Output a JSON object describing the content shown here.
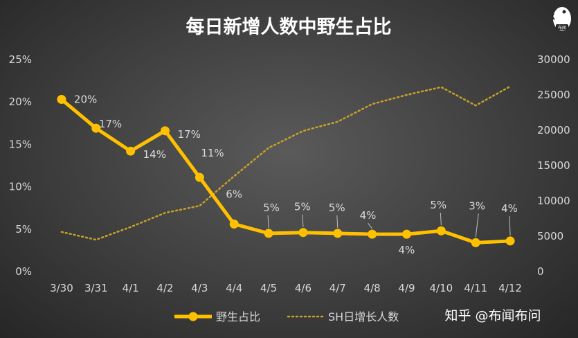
{
  "chart_data": {
    "type": "line",
    "title": "每日新增人数中野生占比",
    "categories": [
      "3/30",
      "3/31",
      "4/1",
      "4/2",
      "4/3",
      "4/4",
      "4/5",
      "4/6",
      "4/7",
      "4/8",
      "4/9",
      "4/10",
      "4/11",
      "4/12"
    ],
    "series": [
      {
        "name": "野生占比",
        "axis": "left",
        "values": [
          0.203,
          0.169,
          0.142,
          0.166,
          0.111,
          0.056,
          0.045,
          0.046,
          0.045,
          0.044,
          0.044,
          0.048,
          0.034,
          0.036
        ],
        "labels": [
          "20%",
          "17%",
          "14%",
          "17%",
          "11%",
          "6%",
          "5%",
          "5%",
          "5%",
          "4%",
          "4%",
          "5%",
          "3%",
          "4%"
        ],
        "color": "#ffc000",
        "style": "solid-markers"
      },
      {
        "name": "SH日增长人数",
        "axis": "right",
        "values": [
          5600,
          4500,
          6300,
          8300,
          9300,
          13500,
          17500,
          19900,
          21200,
          23700,
          25000,
          26100,
          23500,
          26200
        ],
        "color": "#c9a227",
        "style": "dotted"
      }
    ],
    "y_left": {
      "min": 0,
      "max": 0.25,
      "ticks": [
        "0%",
        "5%",
        "10%",
        "15%",
        "20%",
        "25%"
      ]
    },
    "y_right": {
      "min": 0,
      "max": 30000,
      "ticks": [
        "0",
        "5000",
        "10000",
        "15000",
        "20000",
        "25000",
        "30000"
      ]
    },
    "grid": false,
    "legend": "bottom-center"
  },
  "watermark": {
    "text": "知乎 @布闻布问",
    "logo_text": "布闻"
  }
}
